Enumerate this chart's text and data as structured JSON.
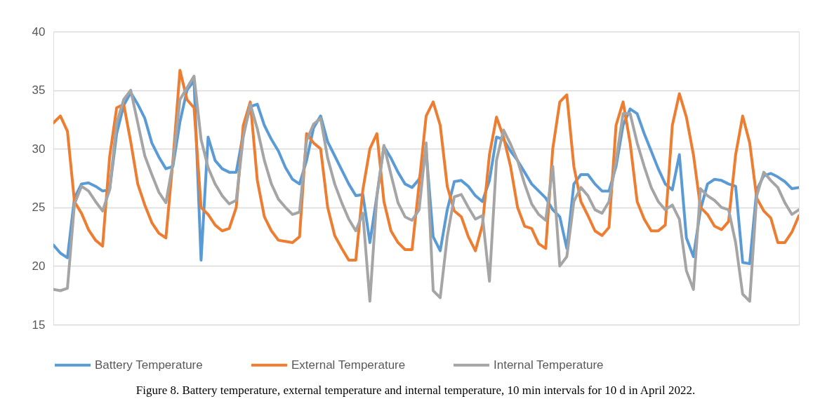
{
  "chart_data": {
    "type": "line",
    "ylim": [
      15,
      40
    ],
    "yticks": [
      15,
      20,
      25,
      30,
      35,
      40
    ],
    "tick_labels": "y",
    "grid": "y",
    "legend": "bottom",
    "line_style": "solid",
    "marker": "none",
    "annotations": [
      "Figure 8. Battery temperature, external temperature and internal temperature, 10 min intervals for 10 d in April 2022."
    ],
    "categories": [
      null,
      null,
      null,
      null,
      null,
      null,
      null,
      null,
      null,
      null,
      null,
      null,
      null,
      null,
      null,
      null,
      null,
      null,
      null,
      null,
      null,
      null,
      null,
      null,
      null,
      null,
      null,
      null,
      null,
      null,
      null,
      null,
      null,
      null,
      null,
      null,
      null,
      null,
      null,
      null,
      null,
      null,
      null,
      null,
      null,
      null,
      null,
      null,
      null,
      null,
      null,
      null,
      null,
      null,
      null,
      null,
      null,
      null,
      null,
      null,
      null,
      null,
      null,
      null,
      null,
      null,
      null,
      null,
      null,
      null,
      null,
      null,
      null,
      null,
      null,
      null,
      null,
      null,
      null,
      null,
      null,
      null,
      null,
      null,
      null,
      null,
      null,
      null,
      null,
      null,
      null,
      null,
      null,
      null,
      null,
      null,
      null,
      null,
      null,
      null,
      null,
      null,
      null,
      null,
      null,
      null,
      null
    ],
    "series": [
      {
        "name": "Battery Temperature",
        "color": "#5b9bd5",
        "values": [
          21.8,
          21.1,
          20.7,
          25.8,
          27,
          27.1,
          26.8,
          26.4,
          26.5,
          31.3,
          33.7,
          34.8,
          33.8,
          32.6,
          30.5,
          29.3,
          28.3,
          28.5,
          32.3,
          35,
          35.8,
          20.5,
          31,
          29,
          28.3,
          28,
          28,
          31.3,
          33.6,
          33.8,
          32,
          30.8,
          29.8,
          28.4,
          27.4,
          27,
          29,
          31.8,
          32.8,
          30.6,
          29.4,
          28.2,
          27,
          26,
          26.1,
          22,
          26,
          30.2,
          29.2,
          28,
          27,
          26.7,
          27.4,
          29.8,
          22.5,
          21.3,
          24.8,
          27.2,
          27.3,
          26.8,
          26,
          25.5,
          27.3,
          31,
          30.8,
          29.8,
          29,
          28,
          27,
          26.4,
          25.8,
          24.8,
          24.2,
          21.5,
          27,
          27.8,
          27.8,
          27,
          26.4,
          26.4,
          28.5,
          32,
          33.4,
          33,
          31.3,
          29.8,
          28.3,
          27,
          26.5,
          29.5,
          22.4,
          20.8,
          24.8,
          27,
          27.4,
          27.3,
          27,
          26.8,
          20.3,
          20.2,
          26.5,
          27.7,
          27.9,
          27.6,
          27.2,
          26.6,
          26.7
        ]
      },
      {
        "name": "External Temperature",
        "color": "#ed7d31",
        "values": [
          32.2,
          32.8,
          31.5,
          25.5,
          24.5,
          23.1,
          22.2,
          21.7,
          29.3,
          33.5,
          33.8,
          30.6,
          27,
          25.2,
          23.7,
          22.8,
          22.4,
          29,
          36.7,
          34.2,
          33.5,
          25,
          24.4,
          23.5,
          23,
          23.2,
          25,
          32,
          34,
          27.3,
          24.2,
          23,
          22.2,
          22.1,
          22,
          22.5,
          31.3,
          30.5,
          30,
          25,
          22.6,
          21.5,
          20.5,
          20.5,
          26.5,
          30,
          31.3,
          25.5,
          23,
          22,
          21.4,
          21.4,
          27,
          32.8,
          34,
          32,
          26.8,
          24.7,
          24.2,
          22.5,
          21.3,
          23.5,
          29.5,
          32.7,
          31,
          28.5,
          25,
          23.4,
          23.2,
          21.9,
          21.5,
          30,
          34,
          34.6,
          28.5,
          25.5,
          24.3,
          23,
          22.6,
          23.3,
          32,
          34,
          30.5,
          25.5,
          24,
          23,
          23,
          23.5,
          32,
          34.7,
          32.7,
          29.5,
          25,
          24.4,
          23.4,
          23.1,
          23.8,
          29.5,
          32.8,
          30.5,
          25.8,
          24.7,
          24.1,
          22,
          22,
          22.9,
          24.3
        ]
      },
      {
        "name": "Internal Temperature",
        "color": "#a5a5a5",
        "values": [
          18,
          17.9,
          18.1,
          25.3,
          26.8,
          26.4,
          25.5,
          24.7,
          26.5,
          32.2,
          34.2,
          35,
          32.2,
          29.4,
          27.8,
          26.3,
          25.4,
          28.8,
          34.2,
          35.2,
          36.2,
          30.8,
          28.4,
          27,
          26,
          25.3,
          25.6,
          31,
          33.8,
          31.7,
          29,
          27,
          25.7,
          25,
          24.4,
          24.6,
          30.7,
          32.1,
          32.6,
          29.2,
          27,
          25.4,
          24,
          23,
          24.5,
          17,
          26,
          30.3,
          27.8,
          25.4,
          24.2,
          23.9,
          24.8,
          30.5,
          17.9,
          17.3,
          22.5,
          25.9,
          26.1,
          25,
          24,
          24.3,
          18.7,
          29,
          31.6,
          30.4,
          29,
          27,
          25.3,
          24.4,
          23.9,
          28.5,
          20,
          20.8,
          25.5,
          26.7,
          26,
          24.8,
          24.5,
          25.5,
          29,
          33,
          33,
          30.5,
          28.5,
          26.7,
          25.5,
          24.8,
          25.2,
          24,
          19.6,
          18,
          26.6,
          26,
          25.6,
          25,
          24.8,
          22,
          17.6,
          17,
          26,
          28,
          27.3,
          26.7,
          25.4,
          24.4,
          24.8
        ]
      }
    ]
  }
}
